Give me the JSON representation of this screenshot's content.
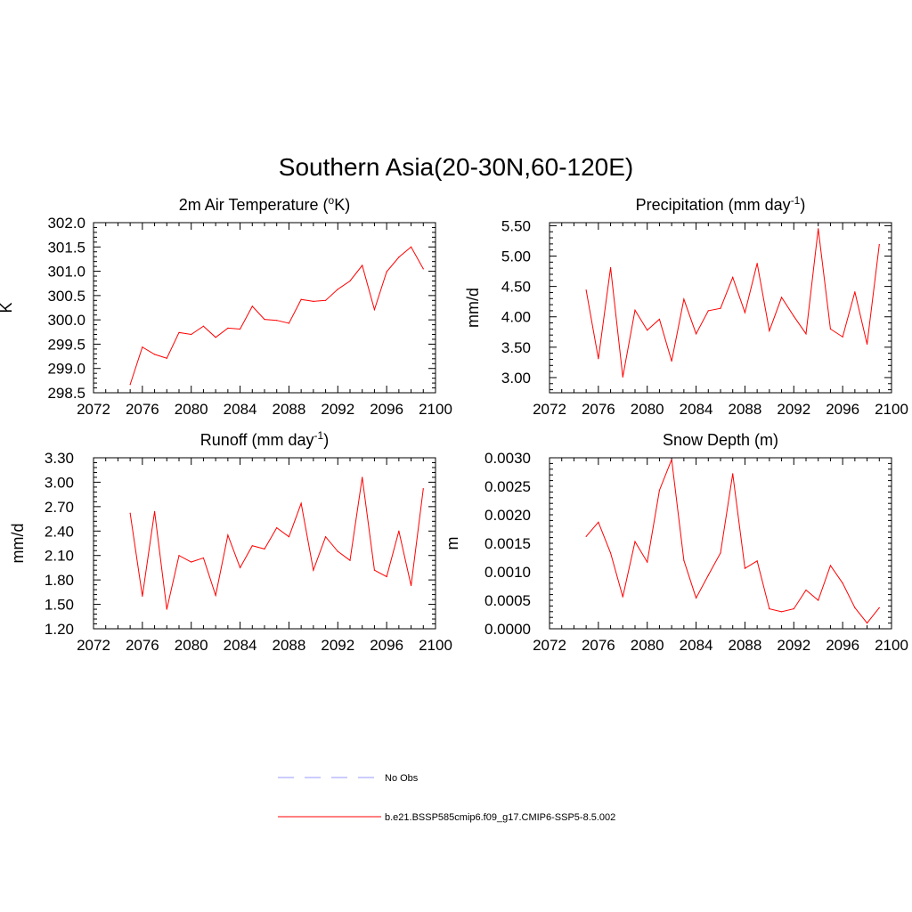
{
  "title": "Southern Asia(20-30N,60-120E)",
  "colors": {
    "series": "#ff0000",
    "obs": "#9999ff"
  },
  "legend": [
    {
      "label": "No Obs",
      "style": "dashed",
      "color": "#9999ff"
    },
    {
      "label": "b.e21.BSSP585cmip6.f09_g17.CMIP6-SSP5-8.5.002",
      "style": "solid",
      "color": "#ff0000"
    }
  ],
  "chart_data": [
    {
      "type": "line",
      "title": "2m Air Temperature (",
      "title_sup": "o",
      "title_after": "K)",
      "ylabel": "K",
      "xlim": [
        2072,
        2100
      ],
      "ylim": [
        298.5,
        302.0
      ],
      "x_ticks": [
        2072,
        2076,
        2080,
        2084,
        2088,
        2092,
        2096,
        2100
      ],
      "y_ticks": [
        "298.5",
        "299.0",
        "299.5",
        "300.0",
        "300.5",
        "301.0",
        "301.5",
        "302.0"
      ],
      "series": [
        {
          "x": [
            2075,
            2076,
            2077,
            2078,
            2079,
            2080,
            2081,
            2082,
            2083,
            2084,
            2085,
            2086,
            2087,
            2088,
            2089,
            2090,
            2091,
            2092,
            2093,
            2094,
            2095,
            2096,
            2097,
            2098,
            2099
          ],
          "values": [
            298.67,
            299.44,
            299.29,
            299.21,
            299.74,
            299.7,
            299.87,
            299.64,
            299.83,
            299.81,
            300.28,
            300.01,
            299.99,
            299.93,
            300.42,
            300.38,
            300.4,
            300.63,
            300.8,
            301.12,
            300.21,
            300.99,
            301.29,
            301.5,
            301.05
          ]
        }
      ]
    },
    {
      "type": "line",
      "title": "Precipitation (mm day",
      "title_sup": "-1",
      "title_after": ")",
      "ylabel": "mm/d",
      "xlim": [
        2072,
        2100
      ],
      "ylim": [
        2.75,
        5.55
      ],
      "x_ticks": [
        2072,
        2076,
        2080,
        2084,
        2088,
        2092,
        2096,
        2100
      ],
      "y_ticks": [
        "3.00",
        "3.50",
        "4.00",
        "4.50",
        "5.00",
        "5.50"
      ],
      "series": [
        {
          "x": [
            2075,
            2076,
            2077,
            2078,
            2079,
            2080,
            2081,
            2082,
            2083,
            2084,
            2085,
            2086,
            2087,
            2088,
            2089,
            2090,
            2091,
            2092,
            2093,
            2094,
            2095,
            2096,
            2097,
            2098,
            2099
          ],
          "values": [
            4.44,
            3.31,
            4.81,
            3.01,
            4.11,
            3.78,
            3.96,
            3.27,
            4.29,
            3.72,
            4.1,
            4.14,
            4.65,
            4.07,
            4.88,
            3.77,
            4.32,
            4.01,
            3.72,
            5.45,
            3.8,
            3.67,
            4.41,
            3.55,
            5.19
          ]
        }
      ]
    },
    {
      "type": "line",
      "title": "Runoff (mm day",
      "title_sup": "-1",
      "title_after": ")",
      "ylabel": "mm/d",
      "xlim": [
        2072,
        2100
      ],
      "ylim": [
        1.2,
        3.3
      ],
      "x_ticks": [
        2072,
        2076,
        2080,
        2084,
        2088,
        2092,
        2096,
        2100
      ],
      "y_ticks": [
        "1.20",
        "1.50",
        "1.80",
        "2.10",
        "2.40",
        "2.70",
        "3.00",
        "3.30"
      ],
      "series": [
        {
          "x": [
            2075,
            2076,
            2077,
            2078,
            2079,
            2080,
            2081,
            2082,
            2083,
            2084,
            2085,
            2086,
            2087,
            2088,
            2089,
            2090,
            2091,
            2092,
            2093,
            2094,
            2095,
            2096,
            2097,
            2098,
            2099
          ],
          "values": [
            2.62,
            1.6,
            2.64,
            1.44,
            2.1,
            2.02,
            2.07,
            1.61,
            2.35,
            1.95,
            2.22,
            2.18,
            2.44,
            2.33,
            2.74,
            1.92,
            2.33,
            2.15,
            2.04,
            3.06,
            1.92,
            1.84,
            2.4,
            1.73,
            2.92
          ]
        }
      ]
    },
    {
      "type": "line",
      "title": "Snow Depth (m)",
      "title_sup": "",
      "title_after": "",
      "ylabel": "m",
      "xlim": [
        2072,
        2100
      ],
      "ylim": [
        0.0,
        0.003
      ],
      "x_ticks": [
        2072,
        2076,
        2080,
        2084,
        2088,
        2092,
        2096,
        2100
      ],
      "y_ticks": [
        "0.0000",
        "0.0005",
        "0.0010",
        "0.0015",
        "0.0020",
        "0.0025",
        "0.0030"
      ],
      "series": [
        {
          "x": [
            2075,
            2076,
            2077,
            2078,
            2079,
            2080,
            2081,
            2082,
            2083,
            2084,
            2085,
            2086,
            2087,
            2088,
            2089,
            2090,
            2091,
            2092,
            2093,
            2094,
            2095,
            2096,
            2097,
            2098,
            2099
          ],
          "values": [
            0.00162,
            0.00187,
            0.00133,
            0.00056,
            0.00153,
            0.00117,
            0.00243,
            0.00297,
            0.0012,
            0.00054,
            0.00094,
            0.00133,
            0.00272,
            0.00106,
            0.00119,
            0.00035,
            0.0003,
            0.00035,
            0.00068,
            0.0005,
            0.00111,
            0.0008,
            0.00037,
            0.0001,
            0.00037
          ]
        }
      ]
    }
  ]
}
